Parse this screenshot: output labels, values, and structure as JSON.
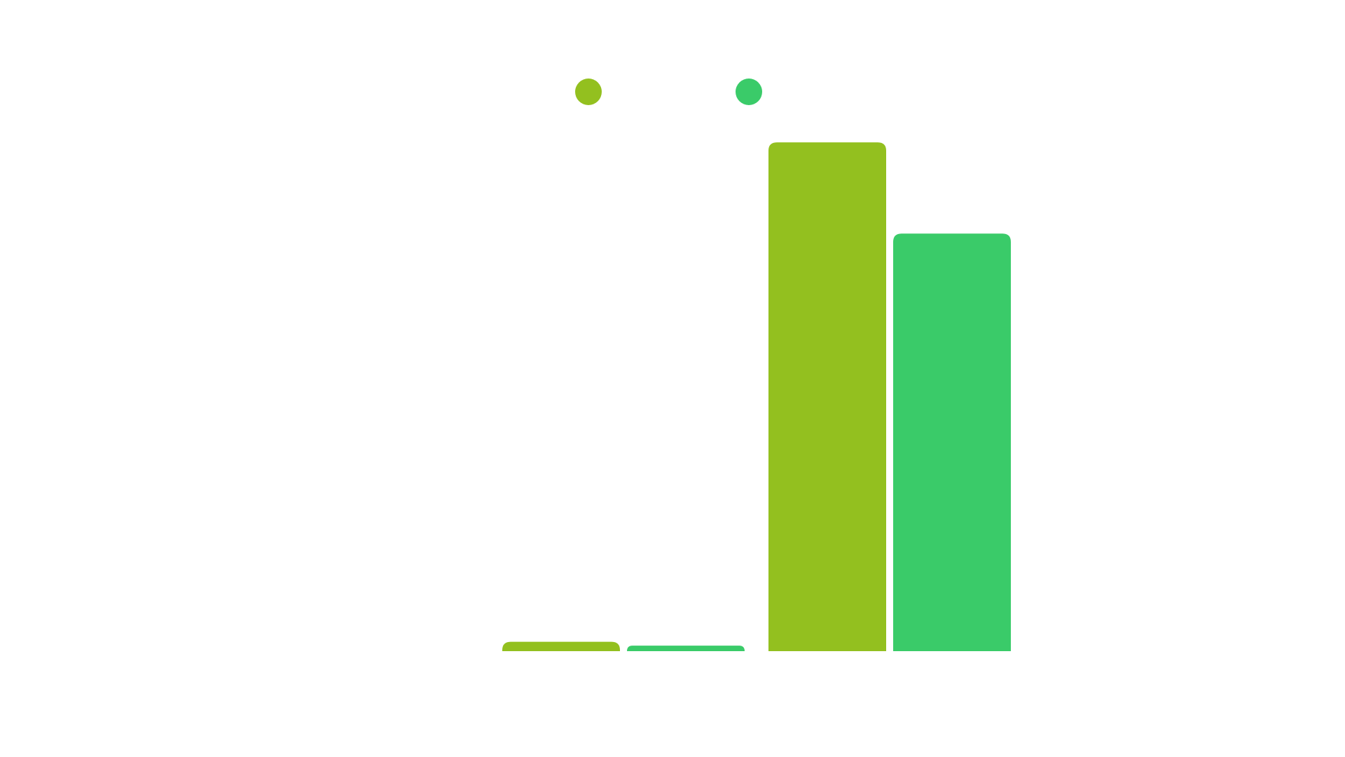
{
  "chart_data": {
    "type": "bar",
    "title": "",
    "xlabel": "",
    "ylabel": "",
    "categories": [
      "",
      ""
    ],
    "series": [
      {
        "name": "",
        "color": "#93C01F",
        "values": [
          1.7,
          92
        ]
      },
      {
        "name": "",
        "color": "#3ACB69",
        "values": [
          1.0,
          75.5
        ]
      }
    ],
    "ylim": [
      0,
      100
    ],
    "grid": false,
    "legend": "top-center",
    "legend_marker": "circle"
  }
}
